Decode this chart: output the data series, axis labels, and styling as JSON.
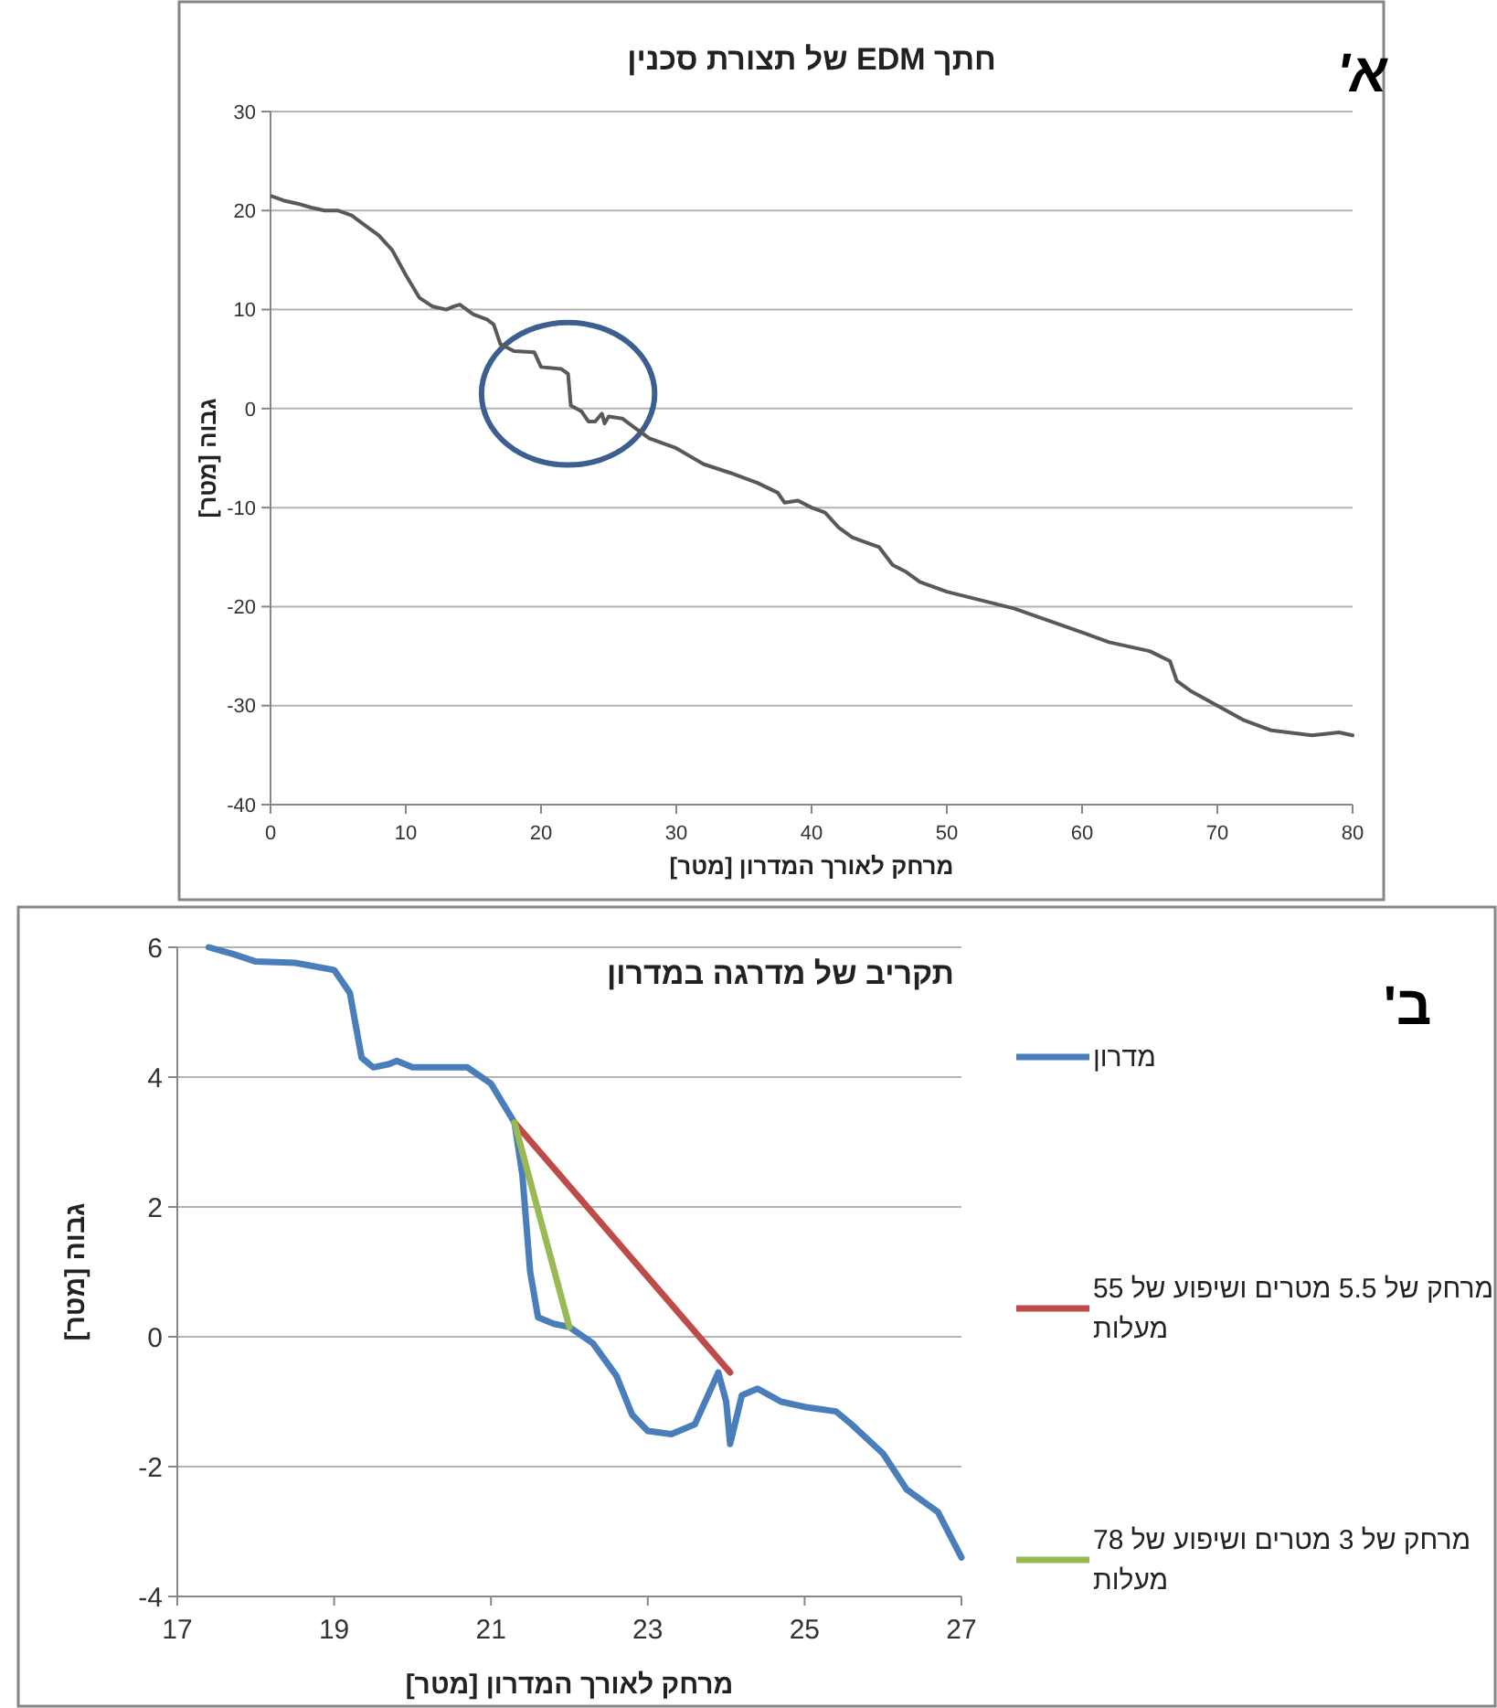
{
  "chart_data": [
    {
      "type": "line",
      "title": "חתך EDM של תצורת סכנין",
      "xlabel": "מרחק לאורך המדרון [מטר]",
      "ylabel": "גבוה [מטר]",
      "annotations": [
        "א'"
      ],
      "color": "#595959",
      "grid": "y",
      "xlim": [
        0,
        80
      ],
      "ylim": [
        -40,
        30
      ],
      "xticks": [
        0,
        10,
        20,
        30,
        40,
        50,
        60,
        70,
        80
      ],
      "yticks": [
        -40,
        -30,
        -20,
        -10,
        0,
        10,
        20,
        30
      ],
      "x": [
        0,
        1,
        2,
        3,
        4,
        5,
        6,
        7,
        8,
        9,
        10,
        11,
        12,
        13,
        13.5,
        14,
        15,
        16,
        16.5,
        17,
        18,
        19.5,
        20,
        21.5,
        22,
        22.2,
        23,
        23.5,
        24,
        24.5,
        24.7,
        25,
        26,
        27,
        28,
        30,
        32,
        34,
        36,
        37.5,
        38,
        39,
        40,
        41,
        42,
        43,
        44,
        45,
        46,
        47,
        48,
        50,
        55,
        60,
        62,
        65,
        66.5,
        67,
        68,
        70,
        72,
        74,
        77,
        79,
        80
      ],
      "values": [
        21.5,
        21,
        20.7,
        20.3,
        20,
        20,
        19.5,
        18.5,
        17.5,
        16,
        13.5,
        11.2,
        10.3,
        10,
        10.3,
        10.5,
        9.5,
        9,
        8.5,
        6.5,
        5.8,
        5.7,
        4.2,
        4,
        3.5,
        0.3,
        -0.3,
        -1.3,
        -1.3,
        -0.5,
        -1.5,
        -0.8,
        -1,
        -2,
        -3,
        -4,
        -5.6,
        -6.5,
        -7.5,
        -8.5,
        -9.5,
        -9.3,
        -10,
        -10.5,
        -12,
        -13,
        -13.5,
        -14,
        -15.8,
        -16.5,
        -17.5,
        -18.5,
        -20.2,
        -22.6,
        -23.6,
        -24.5,
        -25.5,
        -27.5,
        -28.5,
        -30,
        -31.5,
        -32.5,
        -33,
        -32.7,
        -33
      ]
    },
    {
      "type": "line",
      "title": "תקריב של מדרגה במדרון",
      "xlabel": "מרחק לאורך המדרון [מטר]",
      "ylabel": "גבוה [מטר]",
      "annotations": [
        "ב'"
      ],
      "grid": "y",
      "legend": "right",
      "xlim": [
        17,
        27
      ],
      "ylim": [
        -4,
        6
      ],
      "xticks": [
        17,
        19,
        21,
        23,
        25,
        27
      ],
      "yticks": [
        -4,
        -2,
        0,
        2,
        4,
        6
      ],
      "series": [
        {
          "name": "מדרון",
          "color": "#4a7ebb",
          "x": [
            17.4,
            17.7,
            18,
            18.5,
            19,
            19.2,
            19.35,
            19.5,
            19.7,
            19.8,
            20,
            20.5,
            20.7,
            21,
            21.3,
            21.4,
            21.5,
            21.6,
            21.8,
            22,
            22.3,
            22.6,
            22.8,
            23,
            23.3,
            23.6,
            23.9,
            24,
            24.05,
            24.2,
            24.4,
            24.7,
            25,
            25.4,
            25.6,
            26,
            26.3,
            26.7,
            27
          ],
          "values": [
            6.0,
            5.9,
            5.78,
            5.76,
            5.65,
            5.3,
            4.3,
            4.15,
            4.2,
            4.25,
            4.15,
            4.15,
            4.15,
            3.9,
            3.3,
            2.5,
            1,
            0.3,
            0.2,
            0.15,
            -0.1,
            -0.6,
            -1.2,
            -1.45,
            -1.5,
            -1.35,
            -0.55,
            -1.0,
            -1.65,
            -0.9,
            -0.8,
            -1.0,
            -1.08,
            -1.15,
            -1.35,
            -1.8,
            -2.35,
            -2.7,
            -3.4
          ]
        },
        {
          "name": "מרחק של 5.5 מטרים ושיפוע של 55 מעלות",
          "color": "#be4b48",
          "x": [
            21.3,
            24.05
          ],
          "values": [
            3.3,
            -0.55
          ]
        },
        {
          "name": "מרחק של 3 מטרים ושיפוע של 78 מעלות",
          "color": "#98b954",
          "x": [
            21.3,
            22.0
          ],
          "values": [
            3.3,
            0.15
          ]
        }
      ]
    }
  ]
}
